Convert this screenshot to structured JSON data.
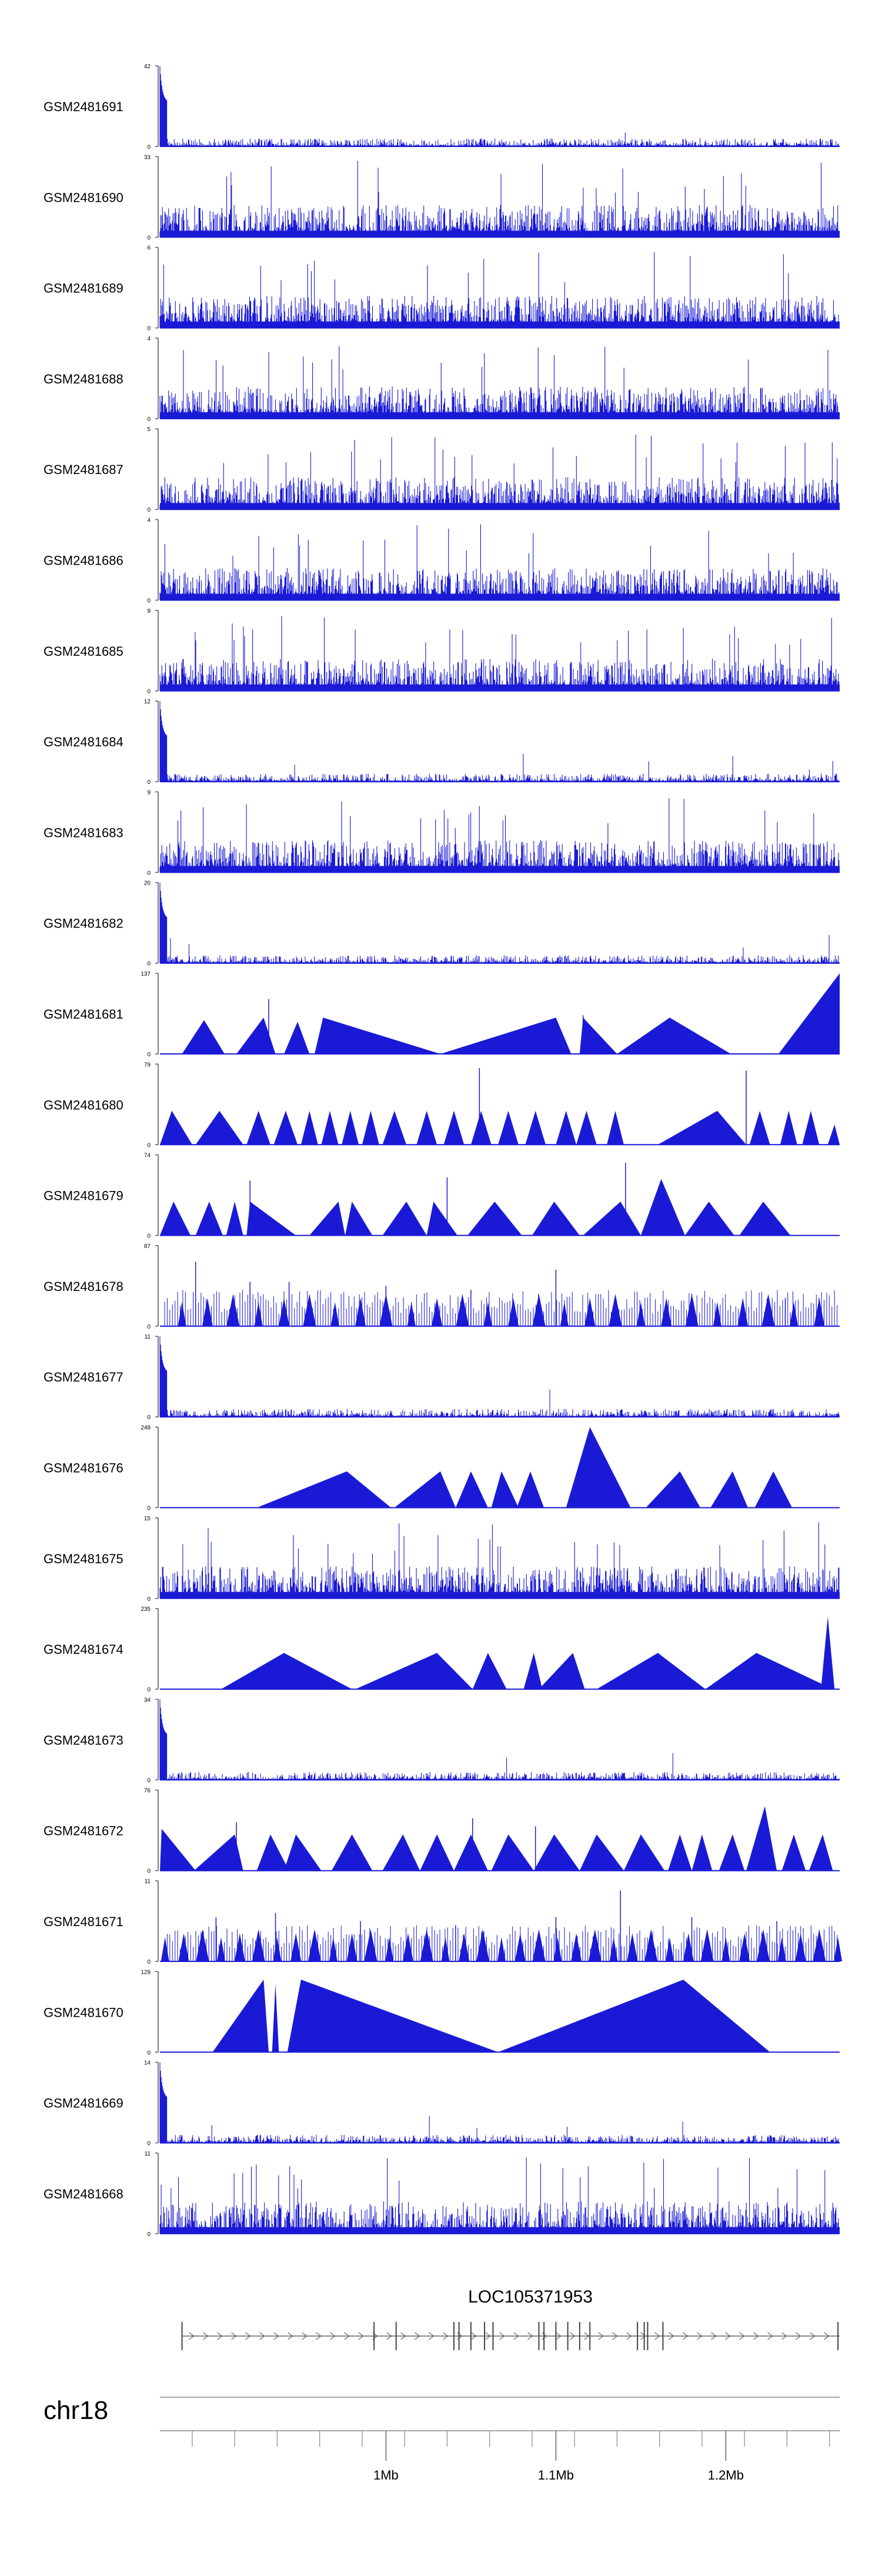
{
  "chart_data": {
    "type": "area",
    "title": "",
    "xlabel": "",
    "ylabel": "",
    "xlim": [
      0.867,
      1.267
    ],
    "x_unit": "Mb",
    "track_color": "#1a1ad6",
    "tracks": [
      {
        "name": "GSM2481691",
        "ymax": 42,
        "ymin": 0,
        "profile": "spike"
      },
      {
        "name": "GSM2481690",
        "ymax": 33,
        "ymin": 0,
        "profile": "dense"
      },
      {
        "name": "GSM2481689",
        "ymax": 6,
        "ymin": 0,
        "profile": "dense"
      },
      {
        "name": "GSM2481688",
        "ymax": 4,
        "ymin": 0,
        "profile": "dense"
      },
      {
        "name": "GSM2481687",
        "ymax": 5,
        "ymin": 0,
        "profile": "dense"
      },
      {
        "name": "GSM2481686",
        "ymax": 4,
        "ymin": 0,
        "profile": "dense"
      },
      {
        "name": "GSM2481685",
        "ymax": 9,
        "ymin": 0,
        "profile": "dense"
      },
      {
        "name": "GSM2481684",
        "ymax": 12,
        "ymin": 0,
        "profile": "spike"
      },
      {
        "name": "GSM2481683",
        "ymax": 9,
        "ymin": 0,
        "profile": "dense"
      },
      {
        "name": "GSM2481682",
        "ymax": 20,
        "ymin": 0,
        "profile": "spike"
      },
      {
        "name": "GSM2481681",
        "ymax": 137,
        "ymin": 0,
        "profile": "sparse",
        "peaks": [
          [
            0.88,
            0.893,
            0.905,
            0.42
          ],
          [
            0.912,
            0.928,
            0.935,
            0.45
          ],
          [
            0.94,
            0.948,
            0.955,
            0.4
          ],
          [
            0.958,
            0.963,
            1.032,
            0.45
          ],
          [
            1.032,
            1.1,
            1.109,
            0.45
          ],
          [
            1.114,
            1.116,
            1.136,
            0.45
          ],
          [
            1.136,
            1.167,
            1.203,
            0.45
          ],
          [
            1.231,
            1.267,
            1.267,
            1.0
          ]
        ],
        "spikes": [
          [
            0.931,
            0.68
          ],
          [
            1.116,
            0.48
          ]
        ]
      },
      {
        "name": "GSM2481680",
        "ymax": 79,
        "ymin": 0,
        "profile": "sparse",
        "peaks": [
          [
            0.867,
            0.874,
            0.886,
            0.42
          ],
          [
            0.888,
            0.902,
            0.916,
            0.42
          ],
          [
            0.918,
            0.925,
            0.932,
            0.42
          ],
          [
            0.934,
            0.941,
            0.948,
            0.42
          ],
          [
            0.95,
            0.955,
            0.96,
            0.42
          ],
          [
            0.962,
            0.967,
            0.972,
            0.42
          ],
          [
            0.974,
            0.979,
            0.984,
            0.42
          ],
          [
            0.986,
            0.991,
            0.996,
            0.42
          ],
          [
            0.998,
            1.005,
            1.012,
            0.42
          ],
          [
            1.018,
            1.024,
            1.03,
            0.42
          ],
          [
            1.034,
            1.04,
            1.046,
            0.42
          ],
          [
            1.05,
            1.056,
            1.062,
            0.42
          ],
          [
            1.066,
            1.072,
            1.078,
            0.42
          ],
          [
            1.082,
            1.088,
            1.094,
            0.42
          ],
          [
            1.1,
            1.106,
            1.112,
            0.42
          ],
          [
            1.112,
            1.118,
            1.124,
            0.42
          ],
          [
            1.13,
            1.135,
            1.14,
            0.42
          ],
          [
            1.16,
            1.195,
            1.212,
            0.42
          ],
          [
            1.214,
            1.22,
            1.226,
            0.42
          ],
          [
            1.232,
            1.237,
            1.242,
            0.42
          ],
          [
            1.245,
            1.25,
            1.255,
            0.42
          ],
          [
            1.26,
            1.264,
            1.267,
            0.25
          ]
        ],
        "spikes": [
          [
            1.055,
            0.95
          ],
          [
            1.212,
            0.92
          ]
        ]
      },
      {
        "name": "GSM2481679",
        "ymax": 74,
        "ymin": 0,
        "profile": "sparse",
        "peaks": [
          [
            0.867,
            0.875,
            0.885,
            0.42
          ],
          [
            0.888,
            0.896,
            0.904,
            0.42
          ],
          [
            0.906,
            0.911,
            0.916,
            0.42
          ],
          [
            0.918,
            0.92,
            0.947,
            0.42
          ],
          [
            0.955,
            0.972,
            0.976,
            0.42
          ],
          [
            0.976,
            0.98,
            0.992,
            0.42
          ],
          [
            0.998,
            1.012,
            1.024,
            0.42
          ],
          [
            1.024,
            1.028,
            1.042,
            0.42
          ],
          [
            1.048,
            1.064,
            1.08,
            0.42
          ],
          [
            1.086,
            1.099,
            1.114,
            0.42
          ],
          [
            1.116,
            1.138,
            1.15,
            0.42
          ],
          [
            1.15,
            1.162,
            1.176,
            0.7
          ],
          [
            1.176,
            1.19,
            1.205,
            0.42
          ],
          [
            1.208,
            1.222,
            1.238,
            0.42
          ]
        ],
        "spikes": [
          [
            0.92,
            0.68
          ],
          [
            1.036,
            0.72
          ],
          [
            1.141,
            0.9
          ]
        ]
      },
      {
        "name": "GSM2481678",
        "ymax": 87,
        "ymin": 0,
        "profile": "comb",
        "teeth": [
          0.88,
          0.895,
          0.91,
          0.925,
          0.94,
          0.955,
          0.97,
          0.985,
          1.0,
          1.015,
          1.03,
          1.045,
          1.06,
          1.075,
          1.09,
          1.105,
          1.12,
          1.135,
          1.15,
          1.165,
          1.18,
          1.195,
          1.21,
          1.225,
          1.24,
          1.255
        ],
        "spikes": [
          [
            0.888,
            0.8
          ],
          [
            0.92,
            0.55
          ],
          [
            0.943,
            0.55
          ],
          [
            1.0,
            0.5
          ],
          [
            1.05,
            0.45
          ],
          [
            1.1,
            0.7
          ],
          [
            1.18,
            0.4
          ],
          [
            1.235,
            0.35
          ]
        ]
      },
      {
        "name": "GSM2481677",
        "ymax": 11,
        "ymin": 0,
        "profile": "spike"
      },
      {
        "name": "GSM2481676",
        "ymax": 248,
        "ymin": 0,
        "profile": "sparse",
        "peaks": [
          [
            0.924,
            0.977,
            1.003,
            0.45
          ],
          [
            1.005,
            1.032,
            1.041,
            0.45
          ],
          [
            1.041,
            1.05,
            1.06,
            0.45
          ],
          [
            1.062,
            1.068,
            1.078,
            0.45
          ],
          [
            1.077,
            1.085,
            1.093,
            0.45
          ],
          [
            1.106,
            1.12,
            1.144,
            1.0
          ],
          [
            1.153,
            1.173,
            1.185,
            0.45
          ],
          [
            1.191,
            1.204,
            1.213,
            0.45
          ],
          [
            1.217,
            1.228,
            1.239,
            0.45
          ]
        ],
        "spikes": []
      },
      {
        "name": "GSM2481675",
        "ymax": 15,
        "ymin": 0,
        "profile": "dense"
      },
      {
        "name": "GSM2481674",
        "ymax": 235,
        "ymin": 0,
        "profile": "sparse",
        "peaks": [
          [
            0.903,
            0.94,
            0.98,
            0.45
          ],
          [
            0.982,
            1.03,
            1.051,
            0.45
          ],
          [
            1.051,
            1.06,
            1.071,
            0.45
          ],
          [
            1.081,
            1.087,
            1.092,
            0.45
          ],
          [
            1.09,
            1.11,
            1.117,
            0.45
          ],
          [
            1.124,
            1.16,
            1.188,
            0.45
          ],
          [
            1.188,
            1.218,
            1.263,
            0.45
          ],
          [
            1.256,
            1.26,
            1.264,
            0.9
          ]
        ],
        "spikes": []
      },
      {
        "name": "GSM2481673",
        "ymax": 34,
        "ymin": 0,
        "profile": "spike"
      },
      {
        "name": "GSM2481672",
        "ymax": 76,
        "ymin": 0,
        "profile": "sparse",
        "peaks": [
          [
            0.867,
            0.868,
            0.888,
            0.52
          ],
          [
            0.887,
            0.911,
            0.916,
            0.45
          ],
          [
            0.924,
            0.932,
            0.943,
            0.45
          ],
          [
            0.94,
            0.947,
            0.962,
            0.45
          ],
          [
            0.968,
            0.98,
            0.992,
            0.45
          ],
          [
            0.998,
            1.01,
            1.02,
            0.45
          ],
          [
            1.02,
            1.03,
            1.04,
            0.45
          ],
          [
            1.04,
            1.05,
            1.06,
            0.45
          ],
          [
            1.062,
            1.072,
            1.087,
            0.45
          ],
          [
            1.087,
            1.099,
            1.114,
            0.45
          ],
          [
            1.114,
            1.124,
            1.14,
            0.45
          ],
          [
            1.14,
            1.15,
            1.164,
            0.45
          ],
          [
            1.166,
            1.173,
            1.18,
            0.45
          ],
          [
            1.18,
            1.186,
            1.192,
            0.45
          ],
          [
            1.196,
            1.204,
            1.211,
            0.45
          ],
          [
            1.212,
            1.223,
            1.23,
            0.8
          ],
          [
            1.233,
            1.24,
            1.247,
            0.45
          ],
          [
            1.249,
            1.257,
            1.263,
            0.45
          ]
        ],
        "spikes": [
          [
            0.912,
            0.6
          ],
          [
            1.051,
            0.65
          ],
          [
            1.088,
            0.55
          ]
        ]
      },
      {
        "name": "GSM2481671",
        "ymax": 11,
        "ymin": 0,
        "profile": "comb",
        "teeth": [
          0.87,
          0.881,
          0.892,
          0.903,
          0.914,
          0.925,
          0.936,
          0.947,
          0.958,
          0.969,
          0.98,
          0.991,
          1.002,
          1.013,
          1.024,
          1.035,
          1.046,
          1.057,
          1.068,
          1.079,
          1.09,
          1.101,
          1.112,
          1.123,
          1.134,
          1.145,
          1.156,
          1.167,
          1.178,
          1.189,
          1.2,
          1.211,
          1.222,
          1.233,
          1.244,
          1.255,
          1.266
        ],
        "spikes": [
          [
            0.9,
            0.55
          ],
          [
            0.935,
            0.6
          ],
          [
            0.985,
            0.5
          ],
          [
            1.041,
            0.45
          ],
          [
            1.1,
            0.55
          ],
          [
            1.138,
            0.88
          ],
          [
            1.18,
            0.55
          ],
          [
            1.23,
            0.5
          ]
        ]
      },
      {
        "name": "GSM2481670",
        "ymax": 129,
        "ymin": 0,
        "profile": "sparse",
        "peaks": [
          [
            0.898,
            0.928,
            0.931,
            0.9
          ],
          [
            0.933,
            0.935,
            0.937,
            0.85
          ],
          [
            0.942,
            0.95,
            1.066,
            0.9
          ],
          [
            1.066,
            1.175,
            1.226,
            0.9
          ]
        ],
        "spikes": []
      },
      {
        "name": "GSM2481669",
        "ymax": 14,
        "ymin": 0,
        "profile": "spike"
      },
      {
        "name": "GSM2481668",
        "ymax": 11,
        "ymin": 0,
        "profile": "dense"
      }
    ],
    "gene": {
      "name": "LOC105371953",
      "start": 0.88,
      "end": 1.267,
      "strand": "+",
      "exons": [
        0.88,
        0.993,
        1.006,
        1.04,
        1.043,
        1.05,
        1.058,
        1.063,
        1.09,
        1.093,
        1.1,
        1.107,
        1.114,
        1.12,
        1.148,
        1.152,
        1.154,
        1.163,
        1.266
      ]
    },
    "ideogram": {
      "chromosome": "chr18",
      "minor_ticks": [
        0.886,
        0.911,
        0.936,
        0.961,
        0.986,
        1.011,
        1.036,
        1.061,
        1.086,
        1.111,
        1.136,
        1.161,
        1.186,
        1.211,
        1.236,
        1.261
      ],
      "major_ticks": [
        {
          "x": 1.0,
          "label": "1Mb"
        },
        {
          "x": 1.1,
          "label": "1.1Mb"
        },
        {
          "x": 1.2,
          "label": "1.2Mb"
        }
      ]
    }
  }
}
